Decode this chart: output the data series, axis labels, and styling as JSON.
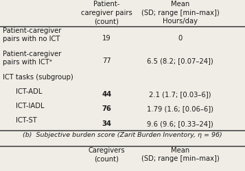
{
  "title_col1": "Patient-\ncaregiver pairs\n(count)",
  "title_col2": "Mean\n(SD; range [min–max])\nHours/day",
  "rows": [
    {
      "label": "Patient-caregiver\npairs with no ICT",
      "col1": "19",
      "col2": "0",
      "indent": false,
      "bold_col1": false
    },
    {
      "label": "Patient-caregiver\npairs with ICTᵃ",
      "col1": "77",
      "col2": "6.5 (8.2; [0.07–24])",
      "indent": false,
      "bold_col1": false
    },
    {
      "label": "ICT tasks (subgroup)",
      "col1": "",
      "col2": "",
      "indent": false,
      "bold_col1": false
    },
    {
      "label": "ICT-ADL",
      "col1": "44",
      "col2": "2.1 (1.7; [0.03–6])",
      "indent": true,
      "bold_col1": true
    },
    {
      "label": "ICT-IADL",
      "col1": "76",
      "col2": "1.79 (1.6; [0.06–6])",
      "indent": true,
      "bold_col1": true
    },
    {
      "label": "ICT-ST",
      "col1": "34",
      "col2": "9.6 (9.6; [0.33–24])",
      "indent": true,
      "bold_col1": true
    }
  ],
  "footer": "(b)  Subjective burden score (Zarit Burden Inventory, η = 96)",
  "bottom_col1": "Caregivers\n(count)",
  "bottom_col2": "Mean\n(SD; range [min–max])",
  "bg_color": "#f0ede6",
  "line_color": "#555555",
  "text_color": "#1a1a1a",
  "header_fontsize": 7.2,
  "body_fontsize": 7.2,
  "footer_fontsize": 6.8
}
